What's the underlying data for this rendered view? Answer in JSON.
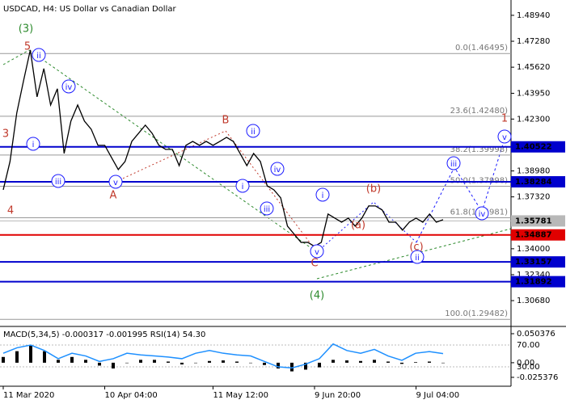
{
  "chart_data": [
    {
      "type": "line",
      "title": "USDCAD, H4:  US Dollar vs Canadian Dollar",
      "color": "#000000",
      "values": [
        1.3777,
        1.3958,
        1.4269,
        1.4475,
        1.4672,
        1.4372,
        1.4553,
        1.432,
        1.4424,
        1.401,
        1.4217,
        1.432,
        1.4217,
        1.4165,
        1.4062,
        1.4062,
        1.3984,
        1.3907,
        1.3958,
        1.4087,
        1.4139,
        1.4191,
        1.4139,
        1.4062,
        1.4036,
        1.4036,
        1.3932,
        1.4062,
        1.4087,
        1.4062,
        1.4087,
        1.4062,
        1.4087,
        1.4113,
        1.4087,
        1.401,
        1.3932,
        1.401,
        1.3958,
        1.3803,
        1.3777,
        1.3726,
        1.3545,
        1.3493,
        1.3441,
        1.3441,
        1.3415,
        1.3441,
        1.3622,
        1.3596,
        1.357,
        1.3596,
        1.3545,
        1.3596,
        1.3674,
        1.3674,
        1.3648,
        1.357,
        1.357,
        1.3519,
        1.357,
        1.3596,
        1.357,
        1.3622,
        1.357,
        1.3586
      ],
      "ylim": [
        1.2908,
        1.4992
      ],
      "yticks": [
        {
          "value": 1.4894,
          "label": "1.48940"
        },
        {
          "value": 1.4728,
          "label": "1.47280"
        },
        {
          "value": 1.4562,
          "label": "1.45620"
        },
        {
          "value": 1.4395,
          "label": "1.43950"
        },
        {
          "value": 1.423,
          "label": "1.42300"
        },
        {
          "value": 1.3898,
          "label": "1.38980"
        },
        {
          "value": 1.3732,
          "label": "1.37320"
        },
        {
          "value": 1.34,
          "label": "1.34000"
        },
        {
          "value": 1.3234,
          "label": "1.32340"
        },
        {
          "value": 1.3068,
          "label": "1.30680"
        }
      ],
      "xticks": [
        {
          "value": 0,
          "label": "11 Mar 2020"
        },
        {
          "value": 15,
          "label": "10 Apr 04:00"
        },
        {
          "value": 31,
          "label": "11 May 12:00"
        },
        {
          "value": 46,
          "label": "9 Jun 20:00"
        },
        {
          "value": 61,
          "label": "9 Jul 04:00"
        }
      ],
      "levels": [
        {
          "value": 1.40522,
          "color": "#0000cd"
        },
        {
          "value": 1.38284,
          "color": "#0000cd"
        },
        {
          "value": 1.35781,
          "color": "#b8b8b8"
        },
        {
          "value": 1.34887,
          "color": "#e00000"
        },
        {
          "value": 1.33157,
          "color": "#0000cd"
        },
        {
          "value": 1.31892,
          "color": "#0000cd"
        }
      ],
      "fib_levels": [
        {
          "value": 1.46495,
          "label": "0.0(1.46495)"
        },
        {
          "value": 1.4248,
          "label": "23.6(1.42480)"
        },
        {
          "value": 1.39998,
          "label": "38.2(1.39998)"
        },
        {
          "value": 1.37998,
          "label": "50.0(1.37998)"
        },
        {
          "value": 1.35981,
          "label": "61.8(1.35981)"
        },
        {
          "value": 1.29482,
          "label": "100.0(1.29482)"
        }
      ],
      "wave_labels": [
        {
          "text": "(3)",
          "color": "#2e8b2e"
        },
        {
          "text": "5",
          "color": "#c0392b"
        },
        {
          "text": "ii",
          "color": "#1a1aff"
        },
        {
          "text": "3",
          "color": "#c0392b"
        },
        {
          "text": "i",
          "color": "#1a1aff"
        },
        {
          "text": "4",
          "color": "#c0392b"
        },
        {
          "text": "iv",
          "color": "#1a1aff"
        },
        {
          "text": "iii",
          "color": "#1a1aff"
        },
        {
          "text": "v",
          "color": "#1a1aff"
        },
        {
          "text": "A",
          "color": "#c0392b"
        },
        {
          "text": "B",
          "color": "#c0392b"
        },
        {
          "text": "ii",
          "color": "#1a1aff"
        },
        {
          "text": "i",
          "color": "#1a1aff"
        },
        {
          "text": "iv",
          "color": "#1a1aff"
        },
        {
          "text": "iii",
          "color": "#1a1aff"
        },
        {
          "text": "v",
          "color": "#1a1aff"
        },
        {
          "text": "C",
          "color": "#c0392b"
        },
        {
          "text": "(4)",
          "color": "#2e8b2e"
        },
        {
          "text": "i",
          "color": "#1a1aff"
        },
        {
          "text": "(b)",
          "color": "#c0392b"
        },
        {
          "text": "(a)",
          "color": "#c0392b"
        },
        {
          "text": "(c)",
          "color": "#c0392b"
        },
        {
          "text": "ii",
          "color": "#1a1aff"
        },
        {
          "text": "iii",
          "color": "#1a1aff"
        },
        {
          "text": "iv",
          "color": "#1a1aff"
        },
        {
          "text": "v",
          "color": "#1a1aff"
        },
        {
          "text": "1",
          "color": "#c0392b"
        }
      ]
    },
    {
      "type": "bar",
      "title": "MACD(5,34,5) -0.000317 -0.001995 RSI(14) 54.30",
      "color": "#000000",
      "values": [
        0.01,
        0.02,
        0.03,
        0.02,
        0.005,
        0.01,
        0.005,
        -0.005,
        -0.01,
        0.0,
        0.005,
        0.005,
        0.002,
        -0.003,
        0.0,
        0.003,
        0.004,
        0.002,
        0.0,
        -0.004,
        -0.01,
        -0.015,
        -0.012,
        -0.008,
        0.005,
        0.004,
        0.003,
        0.005,
        0.002,
        -0.002,
        0.001,
        0.002,
        -0.000317
      ],
      "ylim": [
        -0.025376,
        0.050376
      ],
      "yticks": [
        -0.025376,
        {
          "value": 0,
          "label": "0.00"
        },
        0.050376
      ],
      "y2lim": [
        0,
        100
      ],
      "y2ticks": [
        {
          "value": 70,
          "label": "70.00"
        },
        {
          "value": 30,
          "label": "30.00"
        }
      ],
      "series": [
        {
          "color": "#1e90ff",
          "axis": "y2",
          "values": [
            55,
            65,
            70,
            60,
            45,
            55,
            50,
            40,
            45,
            55,
            52,
            50,
            48,
            45,
            55,
            60,
            55,
            52,
            50,
            40,
            30,
            28,
            35,
            45,
            72,
            60,
            55,
            62,
            50,
            42,
            55,
            58,
            54.3
          ]
        }
      ]
    }
  ]
}
